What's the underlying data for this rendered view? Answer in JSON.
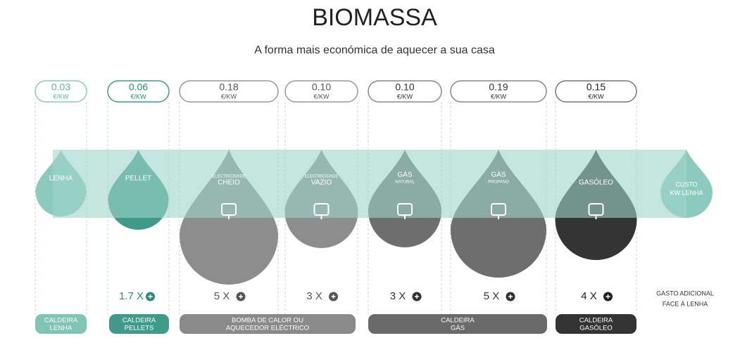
{
  "header": {
    "title": "BIOMASSA",
    "subtitle": "A forma mais económica de aquecer a sua casa"
  },
  "columns": [
    {
      "price": "0.03",
      "unit": "€/KW",
      "label": "LENHA"
    },
    {
      "price": "0.06",
      "unit": "€/KW",
      "label": "PELLET",
      "multiplier": "1.7 X"
    },
    {
      "price": "0.18",
      "unit": "€/KW",
      "sublabel": "ELECTRICIDADE",
      "label": "CHEIO",
      "multiplier": "5 X"
    },
    {
      "price": "0.10",
      "unit": "€/KW",
      "sublabel": "ELECTRICIDADE",
      "label": "VAZIO",
      "multiplier": "3 X"
    },
    {
      "price": "0.10",
      "unit": "€/KW",
      "label": "GÁS",
      "sublabel": "NATURAL",
      "multiplier": "3 X"
    },
    {
      "price": "0.19",
      "unit": "€/KW",
      "label": "GÁS",
      "sublabel": "PROPANO",
      "multiplier": "5 X"
    },
    {
      "price": "0.15",
      "unit": "€/KW",
      "label": "GASÓLEO",
      "multiplier": "4 X"
    }
  ],
  "reference": {
    "label_lines": [
      "CUSTO",
      "KW LENHA"
    ],
    "note_lines": [
      "GASTO ADICIONAL",
      "FACE À LENHA"
    ]
  },
  "systems": [
    {
      "lines": [
        "CALDEIRA",
        "LENHA"
      ]
    },
    {
      "lines": [
        "CALDEIRA",
        "PELLETS"
      ]
    },
    {
      "lines": [
        "BOMBA DE CALOR OU",
        "AQUECEDOR ELÉCTRICO"
      ]
    },
    {
      "lines": [
        "CALDEIRA",
        "GÁS"
      ]
    },
    {
      "lines": [
        "CALDEIRA",
        "GASÓLEO"
      ]
    }
  ]
}
